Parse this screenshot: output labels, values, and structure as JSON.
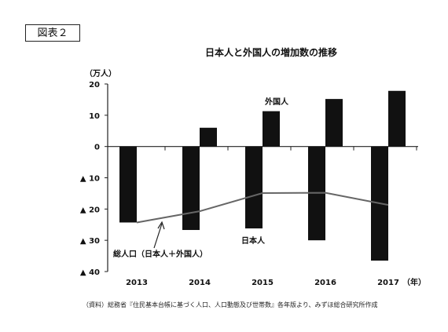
{
  "figure_label": "図表２",
  "source_note": "（資料）総務省『住民基本台帳に基づく人口、人口動態及び世帯数』各年版より、みずほ総合研究所作成",
  "chart_data": {
    "type": "bar",
    "title": "日本人と外国人の増加数の推移",
    "ylabel": "（万人）",
    "xlabel": "（年）",
    "categories": [
      "2013",
      "2014",
      "2015",
      "2016",
      "2017"
    ],
    "ylim": [
      -40,
      20
    ],
    "yticks": [
      {
        "value": 20,
        "label": "20"
      },
      {
        "value": 10,
        "label": "10"
      },
      {
        "value": 0,
        "label": "0"
      },
      {
        "value": -10,
        "label": "▲ 10"
      },
      {
        "value": -20,
        "label": "▲ 20"
      },
      {
        "value": -30,
        "label": "▲ 30"
      },
      {
        "value": -40,
        "label": "▲ 40"
      }
    ],
    "series": [
      {
        "name": "日本人",
        "kind": "bar",
        "values": [
          -24.3,
          -26.7,
          -26.2,
          -30.0,
          -36.5
        ]
      },
      {
        "name": "外国人",
        "kind": "bar",
        "values": [
          0,
          6.0,
          11.3,
          15.2,
          17.8
        ]
      },
      {
        "name": "総人口（日本人＋外国人）",
        "kind": "line",
        "values": [
          -24.3,
          -20.7,
          -14.9,
          -14.8,
          -18.7
        ]
      }
    ],
    "grid": false,
    "colors": {
      "bars": "#111111",
      "line": "#666666"
    }
  }
}
